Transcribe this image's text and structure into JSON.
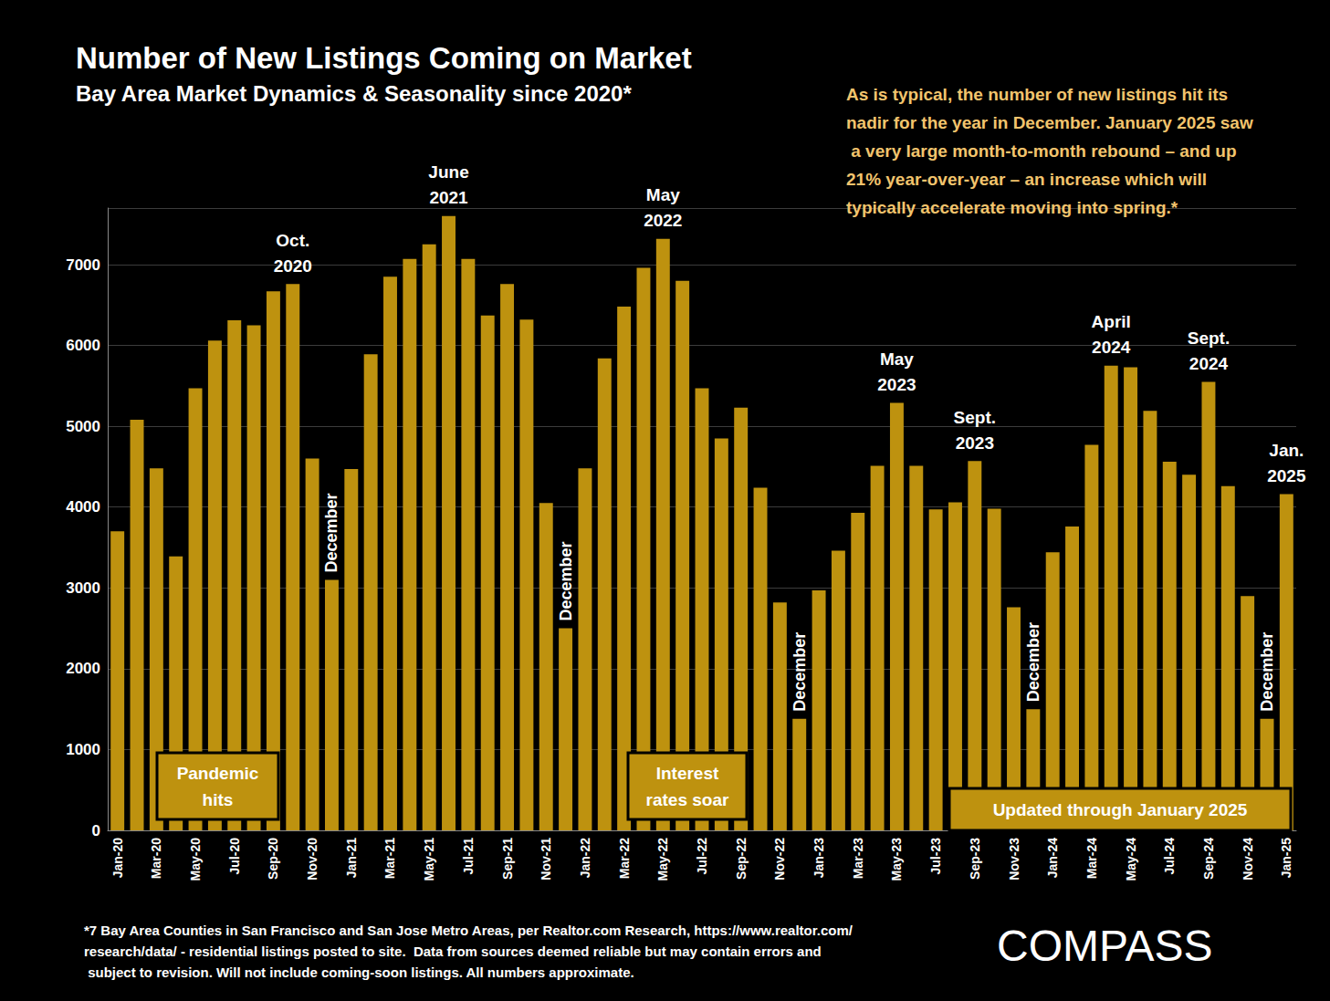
{
  "chart_data": {
    "type": "bar",
    "title": "Number of New Listings Coming on Market",
    "subtitle": "Bay Area Market Dynamics & Seasonality since 2020*",
    "note": "As is typical, the number of new listings hit its nadir for the year in December. January 2025 saw a very large month-to-month rebound – and up 21% year-over-year – an increase which will typically accelerate moving into spring.*",
    "footnote": "*7 Bay Area Counties in San Francisco and San Jose Metro Areas, per Realtor.com Research, https://www.realtor.com/research/data/ - residential listings posted to site.  Data from sources deemed reliable but may contain errors and subject to revision. Will not include coming-soon listings. All numbers approximate.",
    "logo": "COMPASS",
    "callouts": [
      "Pandemic\nhits",
      "Interest\nrates soar",
      "Updated through January 2025"
    ],
    "categories": [
      "Jan-20",
      null,
      "Mar-20",
      null,
      "May-20",
      null,
      "Jul-20",
      null,
      "Sep-20",
      null,
      "Nov-20",
      null,
      "Jan-21",
      null,
      "Mar-21",
      null,
      "May-21",
      null,
      "Jul-21",
      null,
      "Sep-21",
      null,
      "Nov-21",
      null,
      "Jan-22",
      null,
      "Mar-22",
      null,
      "May-22",
      null,
      "Jul-22",
      null,
      "Sep-22",
      null,
      "Nov-22",
      null,
      "Jan-23",
      null,
      "Mar-23",
      null,
      "May-23",
      null,
      "Jul-23",
      null,
      "Sep-23",
      null,
      "Nov-23",
      null,
      "Jan-24",
      null,
      "Mar-24",
      null,
      "May-24",
      null,
      "Jul-24",
      null,
      "Sep-24",
      null,
      "Nov-24",
      null,
      "Jan-25"
    ],
    "values": [
      3700,
      5080,
      4480,
      3390,
      5470,
      6060,
      6310,
      6250,
      6670,
      6760,
      4600,
      3100,
      4470,
      5890,
      6850,
      7070,
      7250,
      7600,
      7070,
      6370,
      6760,
      6320,
      4050,
      2500,
      4480,
      5840,
      6480,
      6960,
      7320,
      6800,
      5470,
      4850,
      5230,
      4240,
      2820,
      1380,
      2970,
      3460,
      3930,
      4510,
      5290,
      4510,
      3970,
      4060,
      4570,
      3980,
      2760,
      1500,
      3440,
      3760,
      4770,
      5750,
      5730,
      5190,
      4560,
      4400,
      5550,
      4260,
      2900,
      1380,
      4160
    ],
    "bar_annotations": [
      null,
      null,
      null,
      null,
      null,
      null,
      null,
      null,
      null,
      "Oct.\n2020",
      null,
      null,
      null,
      null,
      null,
      null,
      null,
      "June\n2021",
      null,
      null,
      null,
      null,
      null,
      null,
      null,
      null,
      null,
      null,
      "May\n2022",
      null,
      null,
      null,
      null,
      null,
      null,
      null,
      null,
      null,
      null,
      null,
      "May\n2023",
      null,
      null,
      null,
      "Sept.\n2023",
      null,
      null,
      null,
      null,
      null,
      null,
      "April\n2024",
      null,
      null,
      null,
      null,
      "Sept.\n2024",
      null,
      null,
      null,
      "Jan.\n2025"
    ],
    "bar_notes": [
      null,
      null,
      null,
      null,
      null,
      null,
      null,
      null,
      null,
      null,
      null,
      "December",
      null,
      null,
      null,
      null,
      null,
      null,
      null,
      null,
      null,
      null,
      null,
      "December",
      null,
      null,
      null,
      null,
      null,
      null,
      null,
      null,
      null,
      null,
      null,
      "December",
      null,
      null,
      null,
      null,
      null,
      null,
      null,
      null,
      null,
      null,
      null,
      "December",
      null,
      null,
      null,
      null,
      null,
      null,
      null,
      null,
      null,
      null,
      null,
      "December",
      null
    ],
    "color": "#be920f",
    "ylim": [
      0,
      7700
    ],
    "yticks": [
      0,
      1000,
      2000,
      3000,
      4000,
      5000,
      6000,
      7000
    ],
    "grid": true
  }
}
